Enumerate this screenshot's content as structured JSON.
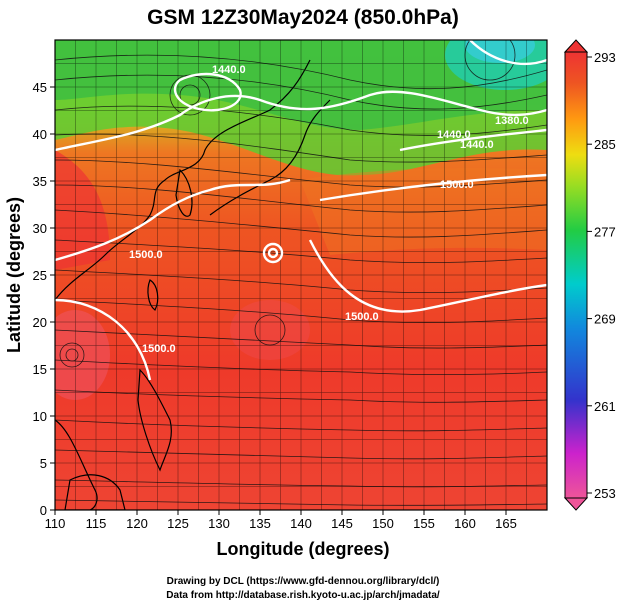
{
  "title": "GSM 12Z30May2024 (850.0hPa)",
  "x_axis": {
    "label": "Longitude (degrees)",
    "ticks": [
      "110",
      "115",
      "120",
      "125",
      "130",
      "135",
      "140",
      "145",
      "150",
      "155",
      "160",
      "165"
    ],
    "range": [
      110,
      170
    ]
  },
  "y_axis": {
    "label": "Latitude  (degrees)",
    "ticks": [
      "0",
      "5",
      "10",
      "15",
      "20",
      "25",
      "30",
      "35",
      "40",
      "45"
    ],
    "range": [
      0,
      50
    ]
  },
  "colorbar": {
    "ticks": [
      "293",
      "285",
      "277",
      "269",
      "261",
      "253"
    ],
    "range": [
      253,
      293
    ],
    "colors": [
      "#ee5599",
      "#cc22cc",
      "#3333cc",
      "#1188dd",
      "#00cccc",
      "#22cc44",
      "#99dd22",
      "#eedd11",
      "#ff9911",
      "#ee5522",
      "#ee3333"
    ]
  },
  "contour_labels": [
    "1440.0",
    "1440.0",
    "1500.0",
    "1500.0",
    "1500.0",
    "1440.0",
    "1500.0",
    "1380.0"
  ],
  "credits": [
    "Drawing by DCL (https://www.gfd-dennou.org/library/dcl/)",
    "Data from http://database.rish.kyoto-u.ac.jp/arch/jmadata/"
  ]
}
